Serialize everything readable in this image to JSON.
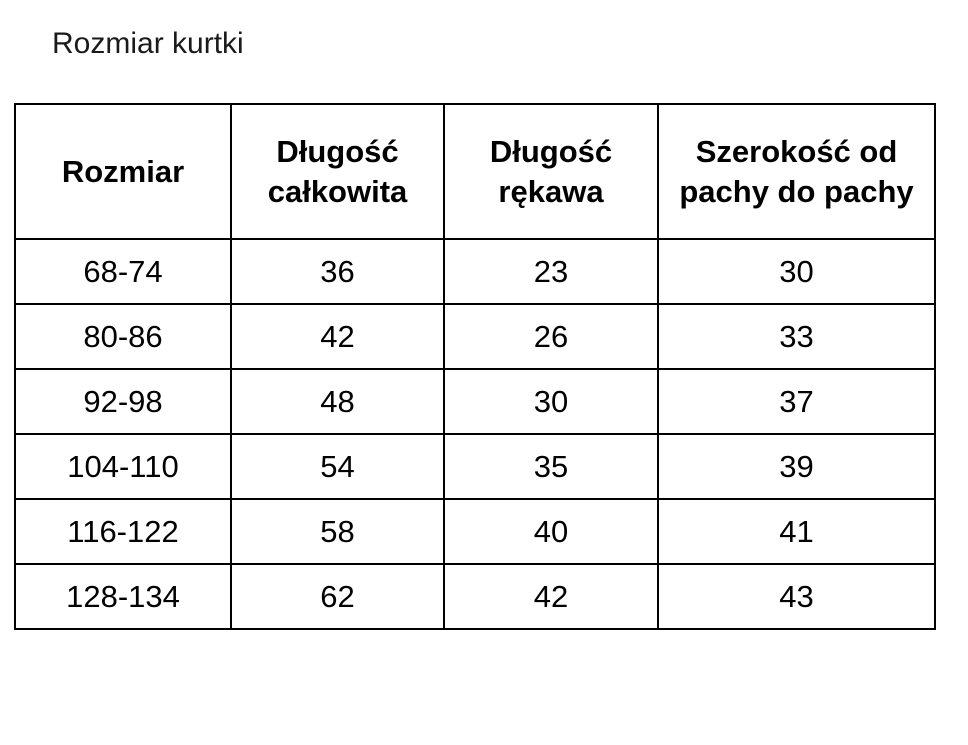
{
  "page": {
    "title": "Rozmiar kurtki"
  },
  "table": {
    "headers": [
      "Rozmiar",
      "Długość całkowita",
      "Długość rękawa",
      "Szerokość od pachy do pachy"
    ],
    "rows": [
      [
        "68-74",
        "36",
        "23",
        "30"
      ],
      [
        "80-86",
        "42",
        "26",
        "33"
      ],
      [
        "92-98",
        "48",
        "30",
        "37"
      ],
      [
        "104-110",
        "54",
        "35",
        "39"
      ],
      [
        "116-122",
        "58",
        "40",
        "41"
      ],
      [
        "128-134",
        "62",
        "42",
        "43"
      ]
    ]
  },
  "chart_data": {
    "type": "table",
    "title": "Rozmiar kurtki",
    "columns": [
      "Rozmiar",
      "Długość całkowita",
      "Długość rękawa",
      "Szerokość od pachy do pachy"
    ],
    "rows": [
      [
        "68-74",
        36,
        23,
        30
      ],
      [
        "80-86",
        42,
        26,
        33
      ],
      [
        "92-98",
        48,
        30,
        37
      ],
      [
        "104-110",
        54,
        35,
        39
      ],
      [
        "116-122",
        58,
        40,
        41
      ],
      [
        "128-134",
        62,
        42,
        43
      ]
    ]
  },
  "colors": {
    "background": "#ffffff",
    "border": "#000000",
    "text": "#000000",
    "title_text": "#1a1a1a"
  }
}
